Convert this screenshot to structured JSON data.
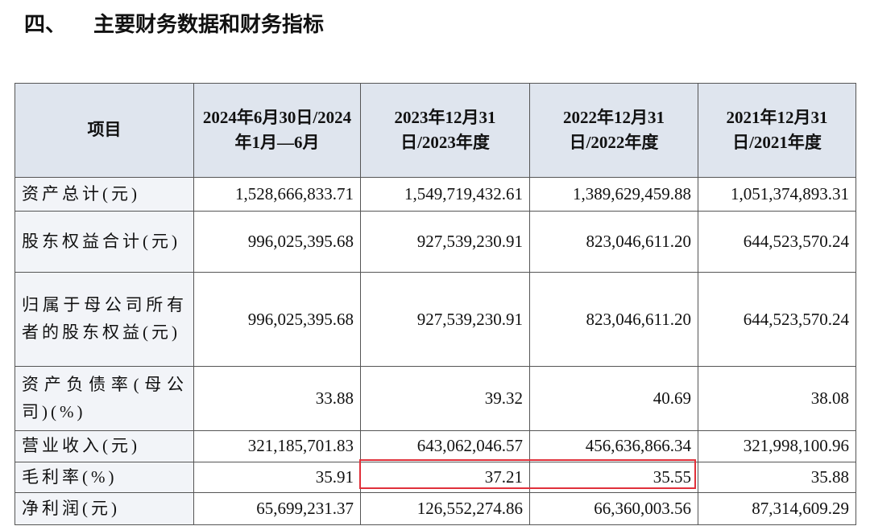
{
  "header": {
    "number": "四、",
    "title": "主要财务数据和财务指标"
  },
  "table": {
    "columns": [
      "项目",
      "2024年6月30日/2024年1月—6月",
      "2023年12月31日/2023年度",
      "2022年12月31日/2022年度",
      "2021年12月31日/2021年度"
    ],
    "rows": [
      [
        "资产总计(元)",
        "1,528,666,833.71",
        "1,549,719,432.61",
        "1,389,629,459.88",
        "1,051,374,893.31"
      ],
      [
        "股东权益合计(元)",
        "996,025,395.68",
        "927,539,230.91",
        "823,046,611.20",
        "644,523,570.24"
      ],
      [
        "归属于母公司所有者的股东权益(元)",
        "996,025,395.68",
        "927,539,230.91",
        "823,046,611.20",
        "644,523,570.24"
      ],
      [
        "资产负债率(母公司)(%)",
        "33.88",
        "39.32",
        "40.69",
        "38.08"
      ],
      [
        "营业收入(元)",
        "321,185,701.83",
        "643,062,046.57",
        "456,636,866.34",
        "321,998,100.96"
      ],
      [
        "毛利率(%)",
        "35.91",
        "37.21",
        "35.55",
        "35.88"
      ],
      [
        "净利润(元)",
        "65,699,231.37",
        "126,552,274.86",
        "66,360,003.56",
        "87,314,609.29"
      ]
    ]
  }
}
